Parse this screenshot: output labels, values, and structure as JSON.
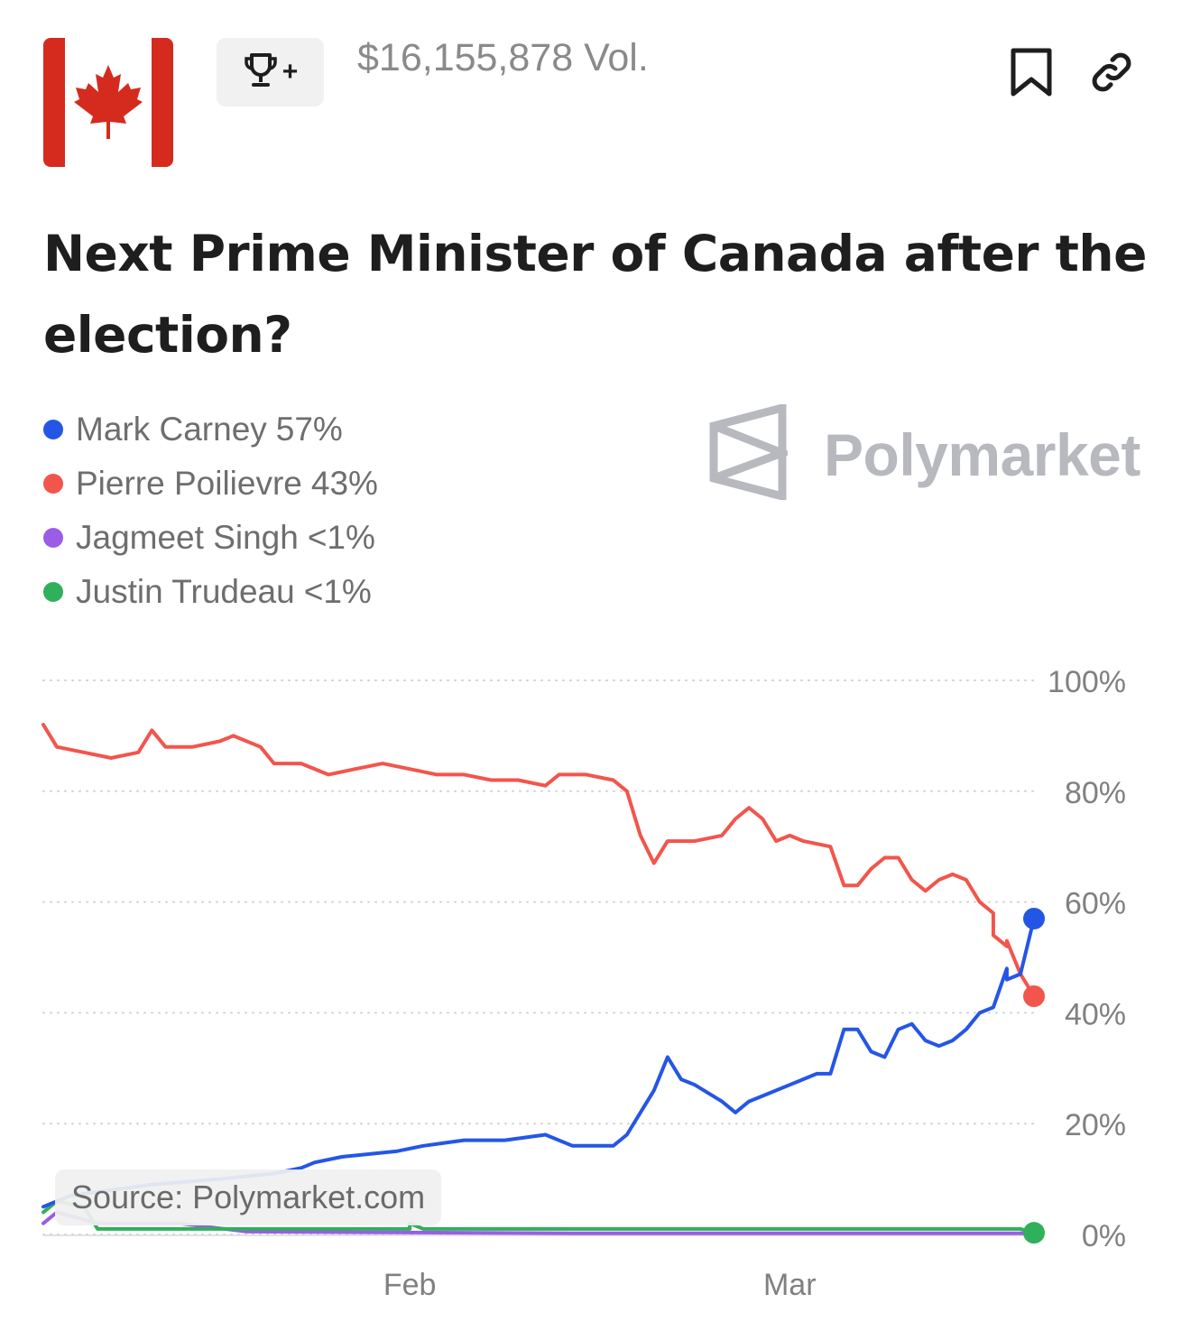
{
  "header": {
    "volume": "$16,155,878 Vol.",
    "icons": [
      "canada-flag-icon",
      "trophy-icon",
      "bookmark-icon",
      "link-icon"
    ],
    "trophy_badge": "+"
  },
  "title": "Next Prime Minister of Canada after the election?",
  "brand": {
    "name": "Polymarket"
  },
  "legend": [
    {
      "name": "Mark Carney",
      "value": "57%",
      "color": "#2456e6"
    },
    {
      "name": "Pierre Poilievre",
      "value": "43%",
      "color": "#f2554c"
    },
    {
      "name": "Jagmeet Singh",
      "value": "<1%",
      "color": "#9b5de5"
    },
    {
      "name": "Justin Trudeau",
      "value": "<1%",
      "color": "#2fb05b"
    }
  ],
  "source": "Source: Polymarket.com",
  "chart_data": {
    "type": "line",
    "x_domain": [
      "2025-01-05",
      "2025-03-19"
    ],
    "x_ticks": [
      {
        "date": "2025-02-01",
        "label": "Feb"
      },
      {
        "date": "2025-03-01",
        "label": "Mar"
      }
    ],
    "y_ticks": [
      {
        "value": 100,
        "label": "100%"
      },
      {
        "value": 80,
        "label": "80%"
      },
      {
        "value": 60,
        "label": "60%"
      },
      {
        "value": 40,
        "label": "40%"
      },
      {
        "value": 20,
        "label": "20%"
      },
      {
        "value": 0,
        "label": "0%"
      }
    ],
    "ylim": [
      0,
      100
    ],
    "grid": "horizontal dotted",
    "series": [
      {
        "name": "Pierre Poilievre",
        "color": "#f2554c",
        "points": [
          [
            "2025-01-05",
            92
          ],
          [
            "2025-01-06",
            88
          ],
          [
            "2025-01-08",
            87
          ],
          [
            "2025-01-10",
            86
          ],
          [
            "2025-01-12",
            87
          ],
          [
            "2025-01-13",
            91
          ],
          [
            "2025-01-14",
            88
          ],
          [
            "2025-01-16",
            88
          ],
          [
            "2025-01-18",
            89
          ],
          [
            "2025-01-19",
            90
          ],
          [
            "2025-01-21",
            88
          ],
          [
            "2025-01-22",
            85
          ],
          [
            "2025-01-24",
            85
          ],
          [
            "2025-01-26",
            83
          ],
          [
            "2025-01-28",
            84
          ],
          [
            "2025-01-30",
            85
          ],
          [
            "2025-02-01",
            84
          ],
          [
            "2025-02-03",
            83
          ],
          [
            "2025-02-05",
            83
          ],
          [
            "2025-02-07",
            82
          ],
          [
            "2025-02-09",
            82
          ],
          [
            "2025-02-11",
            81
          ],
          [
            "2025-02-12",
            83
          ],
          [
            "2025-02-14",
            83
          ],
          [
            "2025-02-16",
            82
          ],
          [
            "2025-02-17",
            80
          ],
          [
            "2025-02-18",
            72
          ],
          [
            "2025-02-19",
            67
          ],
          [
            "2025-02-20",
            71
          ],
          [
            "2025-02-22",
            71
          ],
          [
            "2025-02-24",
            72
          ],
          [
            "2025-02-25",
            75
          ],
          [
            "2025-02-26",
            77
          ],
          [
            "2025-02-27",
            75
          ],
          [
            "2025-02-28",
            71
          ],
          [
            "2025-03-01",
            72
          ],
          [
            "2025-03-02",
            71
          ],
          [
            "2025-03-04",
            70
          ],
          [
            "2025-03-05",
            63
          ],
          [
            "2025-03-06",
            63
          ],
          [
            "2025-03-07",
            66
          ],
          [
            "2025-03-08",
            68
          ],
          [
            "2025-03-09",
            68
          ],
          [
            "2025-03-10",
            64
          ],
          [
            "2025-03-11",
            62
          ],
          [
            "2025-03-12",
            64
          ],
          [
            "2025-03-13",
            65
          ],
          [
            "2025-03-14",
            64
          ],
          [
            "2025-03-15",
            60
          ],
          [
            "2025-03-16",
            58
          ],
          [
            "2025-03-16",
            54
          ],
          [
            "2025-03-17",
            52
          ],
          [
            "2025-03-17",
            53
          ],
          [
            "2025-03-18",
            47
          ],
          [
            "2025-03-19",
            43
          ]
        ]
      },
      {
        "name": "Mark Carney",
        "color": "#2456e6",
        "points": [
          [
            "2025-01-05",
            5
          ],
          [
            "2025-01-07",
            7
          ],
          [
            "2025-01-10",
            8
          ],
          [
            "2025-01-13",
            9
          ],
          [
            "2025-01-18",
            10
          ],
          [
            "2025-01-22",
            11
          ],
          [
            "2025-01-24",
            12
          ],
          [
            "2025-01-25",
            13
          ],
          [
            "2025-01-27",
            14
          ],
          [
            "2025-01-31",
            15
          ],
          [
            "2025-02-02",
            16
          ],
          [
            "2025-02-05",
            17
          ],
          [
            "2025-02-08",
            17
          ],
          [
            "2025-02-11",
            18
          ],
          [
            "2025-02-13",
            16
          ],
          [
            "2025-02-16",
            16
          ],
          [
            "2025-02-17",
            18
          ],
          [
            "2025-02-18",
            22
          ],
          [
            "2025-02-19",
            26
          ],
          [
            "2025-02-20",
            32
          ],
          [
            "2025-02-21",
            28
          ],
          [
            "2025-02-22",
            27
          ],
          [
            "2025-02-24",
            24
          ],
          [
            "2025-02-25",
            22
          ],
          [
            "2025-02-26",
            24
          ],
          [
            "2025-02-27",
            25
          ],
          [
            "2025-02-28",
            26
          ],
          [
            "2025-03-01",
            27
          ],
          [
            "2025-03-03",
            29
          ],
          [
            "2025-03-04",
            29
          ],
          [
            "2025-03-05",
            37
          ],
          [
            "2025-03-06",
            37
          ],
          [
            "2025-03-07",
            33
          ],
          [
            "2025-03-08",
            32
          ],
          [
            "2025-03-09",
            37
          ],
          [
            "2025-03-10",
            38
          ],
          [
            "2025-03-11",
            35
          ],
          [
            "2025-03-12",
            34
          ],
          [
            "2025-03-13",
            35
          ],
          [
            "2025-03-14",
            37
          ],
          [
            "2025-03-15",
            40
          ],
          [
            "2025-03-16",
            41
          ],
          [
            "2025-03-17",
            48
          ],
          [
            "2025-03-17",
            46
          ],
          [
            "2025-03-18",
            47
          ],
          [
            "2025-03-19",
            57
          ]
        ]
      },
      {
        "name": "Jagmeet Singh",
        "color": "#9b5de5",
        "points": [
          [
            "2025-01-05",
            2
          ],
          [
            "2025-01-06",
            4
          ],
          [
            "2025-01-09",
            2
          ],
          [
            "2025-01-15",
            2
          ],
          [
            "2025-01-20",
            0.5
          ],
          [
            "2025-02-14",
            0.2
          ],
          [
            "2025-03-14",
            0.2
          ],
          [
            "2025-03-19",
            0.2
          ]
        ]
      },
      {
        "name": "Justin Trudeau",
        "color": "#2fb05b",
        "points": [
          [
            "2025-01-05",
            4
          ],
          [
            "2025-01-06",
            6
          ],
          [
            "2025-01-08",
            5
          ],
          [
            "2025-01-09",
            1
          ],
          [
            "2025-01-20",
            1
          ],
          [
            "2025-02-01",
            1
          ],
          [
            "2025-02-01",
            2
          ],
          [
            "2025-02-02",
            1
          ],
          [
            "2025-03-18",
            1
          ],
          [
            "2025-03-19",
            0.3
          ]
        ]
      }
    ]
  }
}
